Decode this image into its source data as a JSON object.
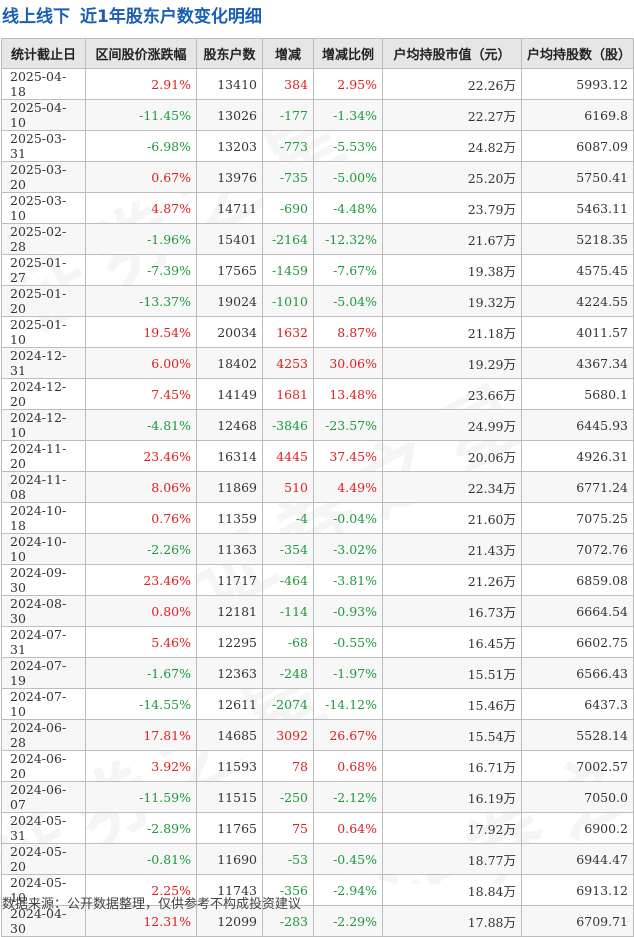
{
  "header": {
    "brand": "线上线下",
    "title": "近1年股东户数变化明细"
  },
  "watermark": "证券之星",
  "table": {
    "columns": [
      "统计截止日",
      "区间股价涨跌幅",
      "股东户数",
      "增减",
      "增减比例",
      "户均持股市值（元）",
      "户均持股数（股）"
    ],
    "rows": [
      {
        "date": "2025-04-18",
        "change_pct": "2.91%",
        "holders": "13410",
        "delta": "384",
        "delta_pct": "2.95%",
        "avg_value": "22.26万",
        "avg_shares": "5993.12"
      },
      {
        "date": "2025-04-10",
        "change_pct": "-11.45%",
        "holders": "13026",
        "delta": "-177",
        "delta_pct": "-1.34%",
        "avg_value": "22.27万",
        "avg_shares": "6169.8"
      },
      {
        "date": "2025-03-31",
        "change_pct": "-6.98%",
        "holders": "13203",
        "delta": "-773",
        "delta_pct": "-5.53%",
        "avg_value": "24.82万",
        "avg_shares": "6087.09"
      },
      {
        "date": "2025-03-20",
        "change_pct": "0.67%",
        "holders": "13976",
        "delta": "-735",
        "delta_pct": "-5.00%",
        "avg_value": "25.20万",
        "avg_shares": "5750.41"
      },
      {
        "date": "2025-03-10",
        "change_pct": "4.87%",
        "holders": "14711",
        "delta": "-690",
        "delta_pct": "-4.48%",
        "avg_value": "23.79万",
        "avg_shares": "5463.11"
      },
      {
        "date": "2025-02-28",
        "change_pct": "-1.96%",
        "holders": "15401",
        "delta": "-2164",
        "delta_pct": "-12.32%",
        "avg_value": "21.67万",
        "avg_shares": "5218.35"
      },
      {
        "date": "2025-01-27",
        "change_pct": "-7.39%",
        "holders": "17565",
        "delta": "-1459",
        "delta_pct": "-7.67%",
        "avg_value": "19.38万",
        "avg_shares": "4575.45"
      },
      {
        "date": "2025-01-20",
        "change_pct": "-13.37%",
        "holders": "19024",
        "delta": "-1010",
        "delta_pct": "-5.04%",
        "avg_value": "19.32万",
        "avg_shares": "4224.55"
      },
      {
        "date": "2025-01-10",
        "change_pct": "19.54%",
        "holders": "20034",
        "delta": "1632",
        "delta_pct": "8.87%",
        "avg_value": "21.18万",
        "avg_shares": "4011.57"
      },
      {
        "date": "2024-12-31",
        "change_pct": "6.00%",
        "holders": "18402",
        "delta": "4253",
        "delta_pct": "30.06%",
        "avg_value": "19.29万",
        "avg_shares": "4367.34"
      },
      {
        "date": "2024-12-20",
        "change_pct": "7.45%",
        "holders": "14149",
        "delta": "1681",
        "delta_pct": "13.48%",
        "avg_value": "23.66万",
        "avg_shares": "5680.1"
      },
      {
        "date": "2024-12-10",
        "change_pct": "-4.81%",
        "holders": "12468",
        "delta": "-3846",
        "delta_pct": "-23.57%",
        "avg_value": "24.99万",
        "avg_shares": "6445.93"
      },
      {
        "date": "2024-11-20",
        "change_pct": "23.46%",
        "holders": "16314",
        "delta": "4445",
        "delta_pct": "37.45%",
        "avg_value": "20.06万",
        "avg_shares": "4926.31"
      },
      {
        "date": "2024-11-08",
        "change_pct": "8.06%",
        "holders": "11869",
        "delta": "510",
        "delta_pct": "4.49%",
        "avg_value": "22.34万",
        "avg_shares": "6771.24"
      },
      {
        "date": "2024-10-18",
        "change_pct": "0.76%",
        "holders": "11359",
        "delta": "-4",
        "delta_pct": "-0.04%",
        "avg_value": "21.60万",
        "avg_shares": "7075.25"
      },
      {
        "date": "2024-10-10",
        "change_pct": "-2.26%",
        "holders": "11363",
        "delta": "-354",
        "delta_pct": "-3.02%",
        "avg_value": "21.43万",
        "avg_shares": "7072.76"
      },
      {
        "date": "2024-09-30",
        "change_pct": "23.46%",
        "holders": "11717",
        "delta": "-464",
        "delta_pct": "-3.81%",
        "avg_value": "21.26万",
        "avg_shares": "6859.08"
      },
      {
        "date": "2024-08-30",
        "change_pct": "0.80%",
        "holders": "12181",
        "delta": "-114",
        "delta_pct": "-0.93%",
        "avg_value": "16.73万",
        "avg_shares": "6664.54"
      },
      {
        "date": "2024-07-31",
        "change_pct": "5.46%",
        "holders": "12295",
        "delta": "-68",
        "delta_pct": "-0.55%",
        "avg_value": "16.45万",
        "avg_shares": "6602.75"
      },
      {
        "date": "2024-07-19",
        "change_pct": "-1.67%",
        "holders": "12363",
        "delta": "-248",
        "delta_pct": "-1.97%",
        "avg_value": "15.51万",
        "avg_shares": "6566.43"
      },
      {
        "date": "2024-07-10",
        "change_pct": "-14.55%",
        "holders": "12611",
        "delta": "-2074",
        "delta_pct": "-14.12%",
        "avg_value": "15.46万",
        "avg_shares": "6437.3"
      },
      {
        "date": "2024-06-28",
        "change_pct": "17.81%",
        "holders": "14685",
        "delta": "3092",
        "delta_pct": "26.67%",
        "avg_value": "15.54万",
        "avg_shares": "5528.14"
      },
      {
        "date": "2024-06-20",
        "change_pct": "3.92%",
        "holders": "11593",
        "delta": "78",
        "delta_pct": "0.68%",
        "avg_value": "16.71万",
        "avg_shares": "7002.57"
      },
      {
        "date": "2024-06-07",
        "change_pct": "-11.59%",
        "holders": "11515",
        "delta": "-250",
        "delta_pct": "-2.12%",
        "avg_value": "16.19万",
        "avg_shares": "7050.0"
      },
      {
        "date": "2024-05-31",
        "change_pct": "-2.89%",
        "holders": "11765",
        "delta": "75",
        "delta_pct": "0.64%",
        "avg_value": "17.92万",
        "avg_shares": "6900.2"
      },
      {
        "date": "2024-05-20",
        "change_pct": "-0.81%",
        "holders": "11690",
        "delta": "-53",
        "delta_pct": "-0.45%",
        "avg_value": "18.77万",
        "avg_shares": "6944.47"
      },
      {
        "date": "2024-05-10",
        "change_pct": "2.25%",
        "holders": "11743",
        "delta": "-356",
        "delta_pct": "-2.94%",
        "avg_value": "18.84万",
        "avg_shares": "6913.12"
      },
      {
        "date": "2024-04-30",
        "change_pct": "12.31%",
        "holders": "12099",
        "delta": "-283",
        "delta_pct": "-2.29%",
        "avg_value": "17.88万",
        "avg_shares": "6709.71"
      }
    ]
  },
  "colors": {
    "up": "#e02020",
    "down": "#1d9a3a",
    "title": "#1a5fb4",
    "header_bg": "#e6e6e6"
  },
  "footer": {
    "source": "数据来源：公开数据整理，仅供参考不构成投资建议"
  }
}
